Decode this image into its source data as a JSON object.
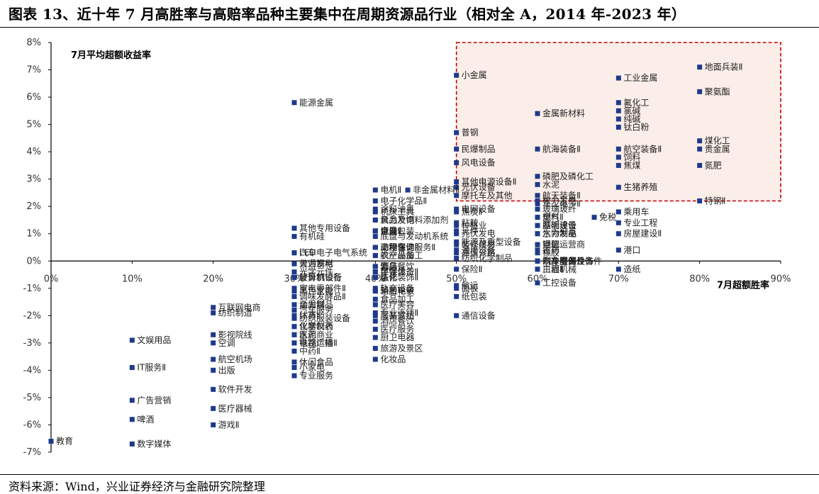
{
  "page": {
    "title": "图表 13、近十年 7 月高胜率与高赔率品种主要集中在周期资源品行业（相对全 A，2014 年-2023 年）",
    "source": "资料来源：Wind，兴业证券经济与金融研究院整理"
  },
  "colors": {
    "marker": "#1f3a8a",
    "highlight_border": "#c00000",
    "highlight_fill": "#fbeee8"
  },
  "chart_data": {
    "type": "scatter",
    "xlabel": "7月超额胜率",
    "ylabel": "7月平均超额收益率",
    "xlim": [
      0,
      0.9
    ],
    "ylim": [
      -0.07,
      0.08
    ],
    "x_ticks": [
      "0%",
      "10%",
      "20%",
      "30%",
      "40%",
      "50%",
      "60%",
      "70%",
      "80%",
      "90%"
    ],
    "y_ticks": [
      "8%",
      "7%",
      "6%",
      "5%",
      "4%",
      "3%",
      "2%",
      "1%",
      "0%",
      "-1%",
      "-2%",
      "-3%",
      "-4%",
      "-5%",
      "-6%",
      "-7%"
    ],
    "highlight_region": {
      "x": [
        0.5,
        0.9
      ],
      "y": [
        0.022,
        0.08
      ]
    },
    "points": [
      {
        "label": "地面兵装Ⅱ",
        "x": 0.8,
        "y": 0.071
      },
      {
        "label": "聚氨酯",
        "x": 0.8,
        "y": 0.062
      },
      {
        "label": "煤化工",
        "x": 0.8,
        "y": 0.044
      },
      {
        "label": "贵金属",
        "x": 0.8,
        "y": 0.041
      },
      {
        "label": "氮肥",
        "x": 0.8,
        "y": 0.035
      },
      {
        "label": "特钢Ⅱ",
        "x": 0.8,
        "y": 0.022
      },
      {
        "label": "工业金属",
        "x": 0.7,
        "y": 0.067
      },
      {
        "label": "氟化工",
        "x": 0.7,
        "y": 0.058
      },
      {
        "label": "氯碱",
        "x": 0.7,
        "y": 0.055
      },
      {
        "label": "纯碱",
        "x": 0.7,
        "y": 0.052
      },
      {
        "label": "钛白粉",
        "x": 0.7,
        "y": 0.049
      },
      {
        "label": "航空装备Ⅱ",
        "x": 0.7,
        "y": 0.041
      },
      {
        "label": "饲料",
        "x": 0.7,
        "y": 0.038
      },
      {
        "label": "焦煤",
        "x": 0.7,
        "y": 0.035
      },
      {
        "label": "生猪养殖",
        "x": 0.7,
        "y": 0.027
      },
      {
        "label": "乘用车",
        "x": 0.7,
        "y": 0.018
      },
      {
        "label": "专业工程",
        "x": 0.7,
        "y": 0.014
      },
      {
        "label": "房屋建设Ⅱ",
        "x": 0.7,
        "y": 0.01
      },
      {
        "label": "港口",
        "x": 0.7,
        "y": 0.004
      },
      {
        "label": "造纸",
        "x": 0.7,
        "y": -0.003
      },
      {
        "label": "免税",
        "x": 0.67,
        "y": 0.016
      },
      {
        "label": "金属新材料",
        "x": 0.6,
        "y": 0.054
      },
      {
        "label": "航海装备Ⅱ",
        "x": 0.6,
        "y": 0.041
      },
      {
        "label": "磷肥及磷化工",
        "x": 0.6,
        "y": 0.031
      },
      {
        "label": "水泥",
        "x": 0.6,
        "y": 0.028
      },
      {
        "label": "航天装备Ⅱ",
        "x": 0.6,
        "y": 0.024
      },
      {
        "label": "军工电子Ⅱ",
        "x": 0.6,
        "y": 0.021
      },
      {
        "label": "核力发电",
        "x": 0.6,
        "y": 0.022
      },
      {
        "label": "玻璃玻纤",
        "x": 0.6,
        "y": 0.019
      },
      {
        "label": "塑料",
        "x": 0.6,
        "y": 0.016
      },
      {
        "label": "燃气Ⅱ",
        "x": 0.6,
        "y": 0.016
      },
      {
        "label": "照明设备",
        "x": 0.6,
        "y": 0.013
      },
      {
        "label": "基础建设",
        "x": 0.6,
        "y": 0.013
      },
      {
        "label": "水力发电",
        "x": 0.6,
        "y": 0.01
      },
      {
        "label": "生物制品",
        "x": 0.6,
        "y": 0.01
      },
      {
        "label": "钾肥",
        "x": 0.6,
        "y": 0.006
      },
      {
        "label": "电信运营商",
        "x": 0.6,
        "y": 0.006
      },
      {
        "label": "橡胶",
        "x": 0.6,
        "y": 0.003
      },
      {
        "label": "农药",
        "x": 0.6,
        "y": 0.004
      },
      {
        "label": "汽车零部件",
        "x": 0.6,
        "y": 0.0
      },
      {
        "label": "制冷空调设备",
        "x": 0.6,
        "y": 0.0
      },
      {
        "label": "汽车服务",
        "x": 0.6,
        "y": 0.0
      },
      {
        "label": "车身附件及饰件",
        "x": 0.6,
        "y": 0.0
      },
      {
        "label": "白酒Ⅱ",
        "x": 0.6,
        "y": -0.003
      },
      {
        "label": "工程机械",
        "x": 0.6,
        "y": -0.003
      },
      {
        "label": "工控设备",
        "x": 0.6,
        "y": -0.008
      },
      {
        "label": "小金属",
        "x": 0.5,
        "y": 0.068
      },
      {
        "label": "普钢",
        "x": 0.5,
        "y": 0.047
      },
      {
        "label": "民爆制品",
        "x": 0.5,
        "y": 0.041
      },
      {
        "label": "风电设备",
        "x": 0.5,
        "y": 0.036
      },
      {
        "label": "其他电源设备Ⅱ",
        "x": 0.5,
        "y": 0.029
      },
      {
        "label": "光伏设备",
        "x": 0.5,
        "y": 0.027
      },
      {
        "label": "摩托车及其他",
        "x": 0.5,
        "y": 0.024
      },
      {
        "label": "焦炭Ⅱ",
        "x": 0.5,
        "y": 0.018
      },
      {
        "label": "电网设备",
        "x": 0.5,
        "y": 0.019
      },
      {
        "label": "粘胶",
        "x": 0.5,
        "y": 0.014
      },
      {
        "label": "种植业",
        "x": 0.5,
        "y": 0.013
      },
      {
        "label": "元件",
        "x": 0.5,
        "y": 0.011
      },
      {
        "label": "光伏发电",
        "x": 0.5,
        "y": 0.01
      },
      {
        "label": "能源及重型设备",
        "x": 0.5,
        "y": 0.007
      },
      {
        "label": "装修建材",
        "x": 0.5,
        "y": 0.006
      },
      {
        "label": "通用设备",
        "x": 0.5,
        "y": 0.004
      },
      {
        "label": "高速公路",
        "x": 0.5,
        "y": 0.003
      },
      {
        "label": "纺织化学制品",
        "x": 0.5,
        "y": 0.001
      },
      {
        "label": "保险Ⅱ",
        "x": 0.5,
        "y": -0.003
      },
      {
        "label": "航运",
        "x": 0.5,
        "y": -0.009
      },
      {
        "label": "面板",
        "x": 0.5,
        "y": -0.01
      },
      {
        "label": "纸包装",
        "x": 0.5,
        "y": -0.013
      },
      {
        "label": "通信设备",
        "x": 0.5,
        "y": -0.02
      },
      {
        "label": "非金属材料Ⅱ",
        "x": 0.44,
        "y": 0.026
      },
      {
        "label": "电机Ⅱ",
        "x": 0.4,
        "y": 0.026
      },
      {
        "label": "电子化学品Ⅱ",
        "x": 0.4,
        "y": 0.022
      },
      {
        "label": "涂料油墨",
        "x": 0.4,
        "y": 0.019
      },
      {
        "label": "机床工具",
        "x": 0.4,
        "y": 0.018
      },
      {
        "label": "风力发电",
        "x": 0.4,
        "y": 0.015
      },
      {
        "label": "食品及饲料添加剂",
        "x": 0.4,
        "y": 0.015
      },
      {
        "label": "证券Ⅱ",
        "x": 0.4,
        "y": 0.011
      },
      {
        "label": "电池",
        "x": 0.4,
        "y": 0.011
      },
      {
        "label": "金属包装",
        "x": 0.4,
        "y": 0.011
      },
      {
        "label": "底盘与发动机系统",
        "x": 0.4,
        "y": 0.009
      },
      {
        "label": "工程咨询服务Ⅱ",
        "x": 0.4,
        "y": 0.005
      },
      {
        "label": "商用车",
        "x": 0.4,
        "y": 0.005
      },
      {
        "label": "动物保健Ⅱ",
        "x": 0.4,
        "y": 0.005
      },
      {
        "label": "农产品加工",
        "x": 0.4,
        "y": 0.002
      },
      {
        "label": "航空设备",
        "x": 0.4,
        "y": 0.002
      },
      {
        "label": "乳品",
        "x": 0.4,
        "y": -0.002
      },
      {
        "label": "酒店餐饮",
        "x": 0.4,
        "y": -0.002
      },
      {
        "label": "饰品",
        "x": 0.4,
        "y": -0.002
      },
      {
        "label": "半导体",
        "x": 0.4,
        "y": -0.004
      },
      {
        "label": "环保设备Ⅱ",
        "x": 0.4,
        "y": -0.004
      },
      {
        "label": "装修装饰Ⅱ",
        "x": 0.4,
        "y": -0.006
      },
      {
        "label": "炼化",
        "x": 0.4,
        "y": -0.006
      },
      {
        "label": "轨交设备",
        "x": 0.4,
        "y": -0.01
      },
      {
        "label": "轮胎轮毂",
        "x": 0.4,
        "y": -0.011
      },
      {
        "label": "消费电子",
        "x": 0.4,
        "y": -0.011
      },
      {
        "label": "食品加工",
        "x": 0.4,
        "y": -0.014
      },
      {
        "label": "医疗美容",
        "x": 0.4,
        "y": -0.016
      },
      {
        "label": "专业连锁Ⅱ",
        "x": 0.4,
        "y": -0.019
      },
      {
        "label": "服装家纺",
        "x": 0.4,
        "y": -0.02
      },
      {
        "label": "酒店餐饮",
        "x": 0.4,
        "y": -0.022
      },
      {
        "label": "医疗服务",
        "x": 0.4,
        "y": -0.025
      },
      {
        "label": "厨卫电器",
        "x": 0.4,
        "y": -0.028
      },
      {
        "label": "旅游及景区",
        "x": 0.4,
        "y": -0.032
      },
      {
        "label": "化妆品",
        "x": 0.4,
        "y": -0.036
      },
      {
        "label": "能源金属",
        "x": 0.3,
        "y": 0.058
      },
      {
        "label": "其他专用设备",
        "x": 0.3,
        "y": 0.012
      },
      {
        "label": "有机硅",
        "x": 0.3,
        "y": 0.009
      },
      {
        "label": "汽车电子电气系统",
        "x": 0.3,
        "y": 0.003
      },
      {
        "label": "LED",
        "x": 0.3,
        "y": 0.003
      },
      {
        "label": "火力发电",
        "x": 0.3,
        "y": -0.001
      },
      {
        "label": "普通钢材",
        "x": 0.3,
        "y": -0.001
      },
      {
        "label": "光学元件",
        "x": 0.3,
        "y": -0.004
      },
      {
        "label": "计算机设备",
        "x": 0.3,
        "y": -0.006
      },
      {
        "label": "股份制银行",
        "x": 0.3,
        "y": -0.006
      },
      {
        "label": "家电零部件Ⅱ",
        "x": 0.3,
        "y": -0.01
      },
      {
        "label": "黑色家电",
        "x": 0.3,
        "y": -0.011
      },
      {
        "label": "调味发酵品Ⅱ",
        "x": 0.3,
        "y": -0.013
      },
      {
        "label": "金属制品",
        "x": 0.3,
        "y": -0.016
      },
      {
        "label": "动力煤",
        "x": 0.3,
        "y": -0.016
      },
      {
        "label": "汽车服务",
        "x": 0.3,
        "y": -0.018
      },
      {
        "label": "体育Ⅱ",
        "x": 0.3,
        "y": -0.02
      },
      {
        "label": "纺织服装设备",
        "x": 0.3,
        "y": -0.021
      },
      {
        "label": "化学制药",
        "x": 0.3,
        "y": -0.024
      },
      {
        "label": "仪器仪表",
        "x": 0.3,
        "y": -0.024
      },
      {
        "label": "水泥",
        "x": 0.3,
        "y": -0.027
      },
      {
        "label": "医药商业",
        "x": 0.3,
        "y": -0.027
      },
      {
        "label": "电视广播Ⅱ",
        "x": 0.3,
        "y": -0.03
      },
      {
        "label": "铁路运输",
        "x": 0.3,
        "y": -0.03
      },
      {
        "label": "中药Ⅱ",
        "x": 0.3,
        "y": -0.033
      },
      {
        "label": "休闲食品",
        "x": 0.3,
        "y": -0.037
      },
      {
        "label": "小家电",
        "x": 0.3,
        "y": -0.039
      },
      {
        "label": "专业服务",
        "x": 0.3,
        "y": -0.042
      },
      {
        "label": "互联网电商",
        "x": 0.2,
        "y": -0.017
      },
      {
        "label": "纺织制造",
        "x": 0.2,
        "y": -0.019
      },
      {
        "label": "影视院线",
        "x": 0.2,
        "y": -0.027
      },
      {
        "label": "空调",
        "x": 0.2,
        "y": -0.03
      },
      {
        "label": "航空机场",
        "x": 0.2,
        "y": -0.036
      },
      {
        "label": "出版",
        "x": 0.2,
        "y": -0.04
      },
      {
        "label": "软件开发",
        "x": 0.2,
        "y": -0.047
      },
      {
        "label": "医疗器械",
        "x": 0.2,
        "y": -0.054
      },
      {
        "label": "游戏Ⅱ",
        "x": 0.2,
        "y": -0.06
      },
      {
        "label": "文娱用品",
        "x": 0.1,
        "y": -0.029
      },
      {
        "label": "IT服务Ⅱ",
        "x": 0.1,
        "y": -0.039
      },
      {
        "label": "广告营销",
        "x": 0.1,
        "y": -0.051
      },
      {
        "label": "啤酒",
        "x": 0.1,
        "y": -0.058
      },
      {
        "label": "数字媒体",
        "x": 0.1,
        "y": -0.067
      },
      {
        "label": "教育",
        "x": 0.0,
        "y": -0.066
      }
    ]
  }
}
